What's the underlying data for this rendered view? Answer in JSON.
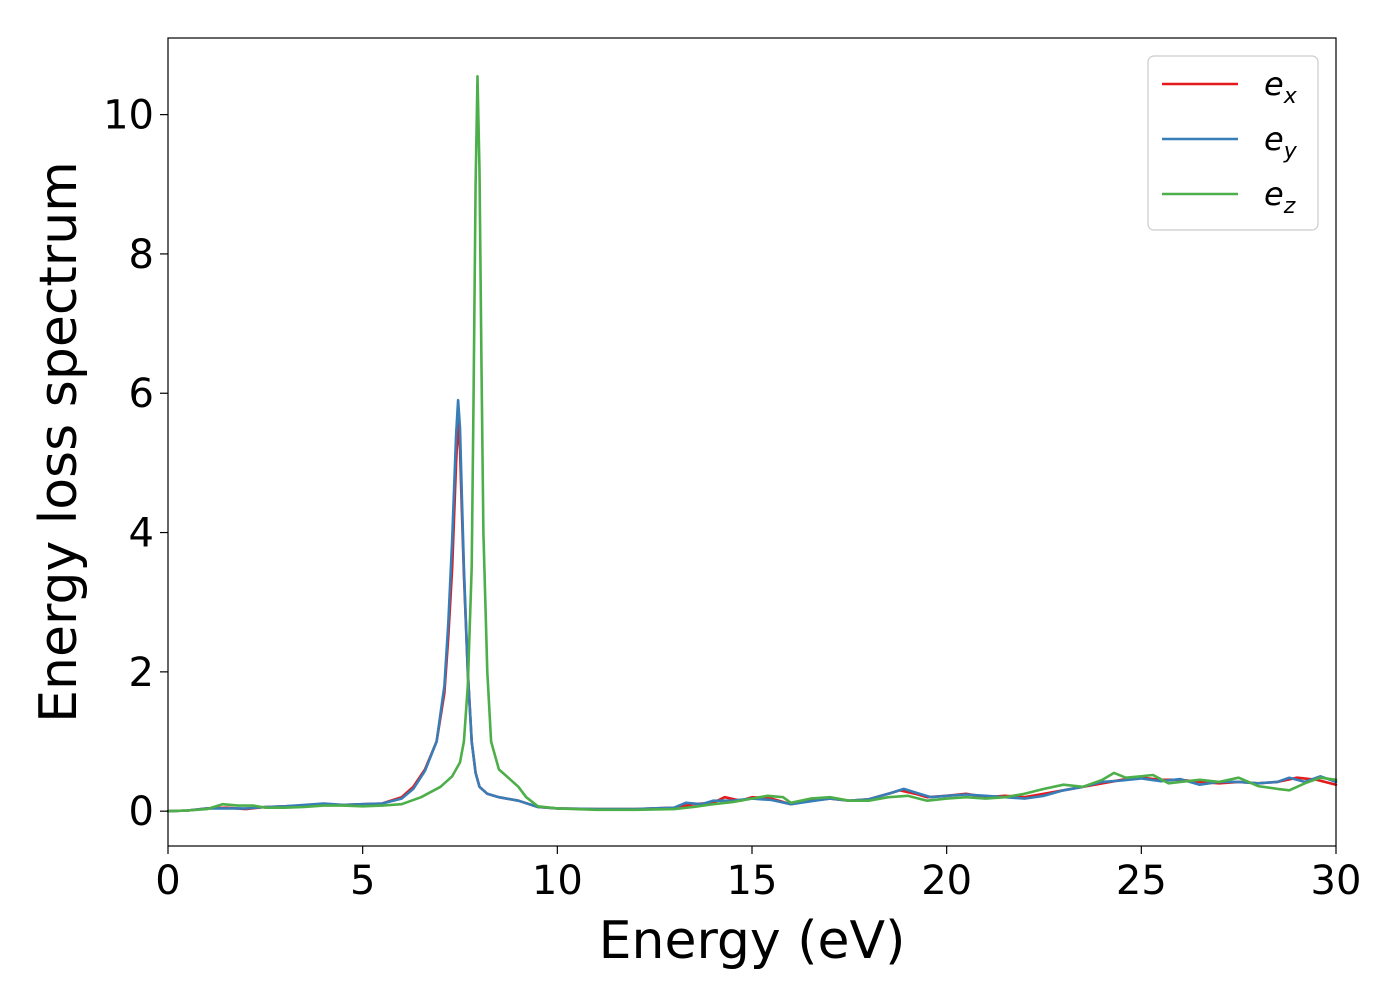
{
  "chart_data": {
    "type": "line",
    "title": "",
    "xlabel": "Energy (eV)",
    "ylabel": "Energy loss spectrum",
    "xlim": [
      0,
      30
    ],
    "ylim": [
      -0.5,
      11.1
    ],
    "xticks": [
      0,
      5,
      10,
      15,
      20,
      25,
      30
    ],
    "yticks": [
      0,
      2,
      4,
      6,
      8,
      10
    ],
    "grid": false,
    "legend_position": "top-right",
    "series": [
      {
        "name": "e_x",
        "label_base": "e",
        "label_sub": "x",
        "color": "#e41a1c",
        "points": [
          [
            0,
            0
          ],
          [
            0.5,
            0.01
          ],
          [
            1,
            0.04
          ],
          [
            1.5,
            0.05
          ],
          [
            2,
            0.03
          ],
          [
            2.5,
            0.06
          ],
          [
            3,
            0.07
          ],
          [
            3.5,
            0.08
          ],
          [
            4,
            0.1
          ],
          [
            4.5,
            0.09
          ],
          [
            5,
            0.1
          ],
          [
            5.5,
            0.11
          ],
          [
            6,
            0.2
          ],
          [
            6.3,
            0.35
          ],
          [
            6.6,
            0.6
          ],
          [
            6.9,
            1.0
          ],
          [
            7.1,
            1.7
          ],
          [
            7.2,
            2.5
          ],
          [
            7.3,
            3.5
          ],
          [
            7.4,
            5.0
          ],
          [
            7.45,
            5.6
          ],
          [
            7.5,
            5.2
          ],
          [
            7.55,
            4.3
          ],
          [
            7.6,
            3.4
          ],
          [
            7.7,
            2.0
          ],
          [
            7.8,
            1.0
          ],
          [
            7.9,
            0.55
          ],
          [
            8.0,
            0.35
          ],
          [
            8.2,
            0.25
          ],
          [
            8.5,
            0.2
          ],
          [
            9,
            0.15
          ],
          [
            9.5,
            0.06
          ],
          [
            10,
            0.04
          ],
          [
            11,
            0.03
          ],
          [
            12,
            0.03
          ],
          [
            13,
            0.05
          ],
          [
            13.5,
            0.1
          ],
          [
            14,
            0.12
          ],
          [
            14.3,
            0.2
          ],
          [
            14.7,
            0.15
          ],
          [
            15,
            0.2
          ],
          [
            15.5,
            0.18
          ],
          [
            16,
            0.1
          ],
          [
            16.5,
            0.15
          ],
          [
            17,
            0.18
          ],
          [
            17.5,
            0.15
          ],
          [
            18,
            0.17
          ],
          [
            18.5,
            0.25
          ],
          [
            18.8,
            0.3
          ],
          [
            19.2,
            0.25
          ],
          [
            19.5,
            0.2
          ],
          [
            20,
            0.22
          ],
          [
            20.5,
            0.25
          ],
          [
            21,
            0.2
          ],
          [
            21.5,
            0.22
          ],
          [
            22,
            0.2
          ],
          [
            22.5,
            0.25
          ],
          [
            23,
            0.3
          ],
          [
            23.5,
            0.35
          ],
          [
            24,
            0.4
          ],
          [
            24.5,
            0.45
          ],
          [
            25,
            0.48
          ],
          [
            25.5,
            0.45
          ],
          [
            26,
            0.45
          ],
          [
            26.5,
            0.42
          ],
          [
            27,
            0.4
          ],
          [
            27.5,
            0.42
          ],
          [
            28,
            0.4
          ],
          [
            28.5,
            0.42
          ],
          [
            29,
            0.48
          ],
          [
            29.5,
            0.45
          ],
          [
            30,
            0.38
          ]
        ]
      },
      {
        "name": "e_y",
        "label_base": "e",
        "label_sub": "y",
        "color": "#377eb8",
        "points": [
          [
            0,
            0
          ],
          [
            0.5,
            0.01
          ],
          [
            1,
            0.04
          ],
          [
            1.5,
            0.04
          ],
          [
            2,
            0.04
          ],
          [
            2.5,
            0.06
          ],
          [
            3,
            0.07
          ],
          [
            3.5,
            0.09
          ],
          [
            4,
            0.11
          ],
          [
            4.5,
            0.09
          ],
          [
            5,
            0.1
          ],
          [
            5.5,
            0.11
          ],
          [
            6,
            0.18
          ],
          [
            6.3,
            0.32
          ],
          [
            6.6,
            0.58
          ],
          [
            6.9,
            1.0
          ],
          [
            7.1,
            1.8
          ],
          [
            7.2,
            2.7
          ],
          [
            7.3,
            3.9
          ],
          [
            7.4,
            5.4
          ],
          [
            7.45,
            5.9
          ],
          [
            7.5,
            5.5
          ],
          [
            7.55,
            4.5
          ],
          [
            7.6,
            3.5
          ],
          [
            7.7,
            2.0
          ],
          [
            7.8,
            1.0
          ],
          [
            7.9,
            0.55
          ],
          [
            8.0,
            0.35
          ],
          [
            8.2,
            0.25
          ],
          [
            8.5,
            0.2
          ],
          [
            9,
            0.15
          ],
          [
            9.5,
            0.06
          ],
          [
            10,
            0.04
          ],
          [
            11,
            0.03
          ],
          [
            12,
            0.03
          ],
          [
            13,
            0.05
          ],
          [
            13.3,
            0.12
          ],
          [
            13.7,
            0.1
          ],
          [
            14,
            0.15
          ],
          [
            14.5,
            0.15
          ],
          [
            15,
            0.18
          ],
          [
            15.5,
            0.16
          ],
          [
            16,
            0.1
          ],
          [
            16.5,
            0.14
          ],
          [
            17,
            0.18
          ],
          [
            17.5,
            0.15
          ],
          [
            18,
            0.17
          ],
          [
            18.5,
            0.25
          ],
          [
            18.9,
            0.32
          ],
          [
            19.3,
            0.25
          ],
          [
            19.6,
            0.2
          ],
          [
            20,
            0.22
          ],
          [
            20.5,
            0.24
          ],
          [
            21,
            0.22
          ],
          [
            21.5,
            0.2
          ],
          [
            22,
            0.18
          ],
          [
            22.5,
            0.22
          ],
          [
            23,
            0.3
          ],
          [
            23.5,
            0.35
          ],
          [
            24,
            0.42
          ],
          [
            24.5,
            0.44
          ],
          [
            25,
            0.47
          ],
          [
            25.5,
            0.43
          ],
          [
            26,
            0.46
          ],
          [
            26.5,
            0.38
          ],
          [
            27,
            0.42
          ],
          [
            27.5,
            0.42
          ],
          [
            28,
            0.4
          ],
          [
            28.5,
            0.42
          ],
          [
            28.8,
            0.48
          ],
          [
            29.2,
            0.42
          ],
          [
            29.6,
            0.5
          ],
          [
            30,
            0.42
          ]
        ]
      },
      {
        "name": "e_z",
        "label_base": "e",
        "label_sub": "z",
        "color": "#4daf4a",
        "points": [
          [
            0,
            0
          ],
          [
            0.5,
            0.01
          ],
          [
            1,
            0.03
          ],
          [
            1.4,
            0.1
          ],
          [
            1.8,
            0.08
          ],
          [
            2.2,
            0.08
          ],
          [
            2.5,
            0.05
          ],
          [
            3,
            0.05
          ],
          [
            3.5,
            0.06
          ],
          [
            4,
            0.08
          ],
          [
            4.5,
            0.08
          ],
          [
            5,
            0.07
          ],
          [
            5.5,
            0.08
          ],
          [
            6,
            0.1
          ],
          [
            6.5,
            0.2
          ],
          [
            7,
            0.35
          ],
          [
            7.3,
            0.5
          ],
          [
            7.5,
            0.7
          ],
          [
            7.6,
            1.0
          ],
          [
            7.7,
            1.8
          ],
          [
            7.8,
            3.5
          ],
          [
            7.85,
            6.0
          ],
          [
            7.9,
            9.0
          ],
          [
            7.95,
            10.55
          ],
          [
            8.0,
            9.2
          ],
          [
            8.05,
            6.5
          ],
          [
            8.1,
            4.0
          ],
          [
            8.2,
            2.0
          ],
          [
            8.3,
            1.0
          ],
          [
            8.5,
            0.6
          ],
          [
            8.8,
            0.45
          ],
          [
            9.0,
            0.35
          ],
          [
            9.2,
            0.2
          ],
          [
            9.5,
            0.07
          ],
          [
            10,
            0.04
          ],
          [
            11,
            0.02
          ],
          [
            12,
            0.02
          ],
          [
            13,
            0.03
          ],
          [
            13.5,
            0.06
          ],
          [
            14,
            0.1
          ],
          [
            14.5,
            0.13
          ],
          [
            15,
            0.18
          ],
          [
            15.4,
            0.22
          ],
          [
            15.8,
            0.2
          ],
          [
            16,
            0.12
          ],
          [
            16.5,
            0.18
          ],
          [
            17,
            0.2
          ],
          [
            17.5,
            0.15
          ],
          [
            18,
            0.15
          ],
          [
            18.5,
            0.2
          ],
          [
            19,
            0.22
          ],
          [
            19.5,
            0.15
          ],
          [
            20,
            0.18
          ],
          [
            20.5,
            0.2
          ],
          [
            21,
            0.18
          ],
          [
            21.5,
            0.2
          ],
          [
            22,
            0.25
          ],
          [
            22.5,
            0.32
          ],
          [
            23,
            0.38
          ],
          [
            23.5,
            0.35
          ],
          [
            24,
            0.45
          ],
          [
            24.3,
            0.55
          ],
          [
            24.6,
            0.48
          ],
          [
            25,
            0.5
          ],
          [
            25.3,
            0.52
          ],
          [
            25.7,
            0.4
          ],
          [
            26,
            0.42
          ],
          [
            26.5,
            0.45
          ],
          [
            27,
            0.42
          ],
          [
            27.5,
            0.48
          ],
          [
            28,
            0.36
          ],
          [
            28.5,
            0.32
          ],
          [
            28.8,
            0.3
          ],
          [
            29.2,
            0.4
          ],
          [
            29.6,
            0.48
          ],
          [
            30,
            0.45
          ]
        ]
      }
    ]
  }
}
